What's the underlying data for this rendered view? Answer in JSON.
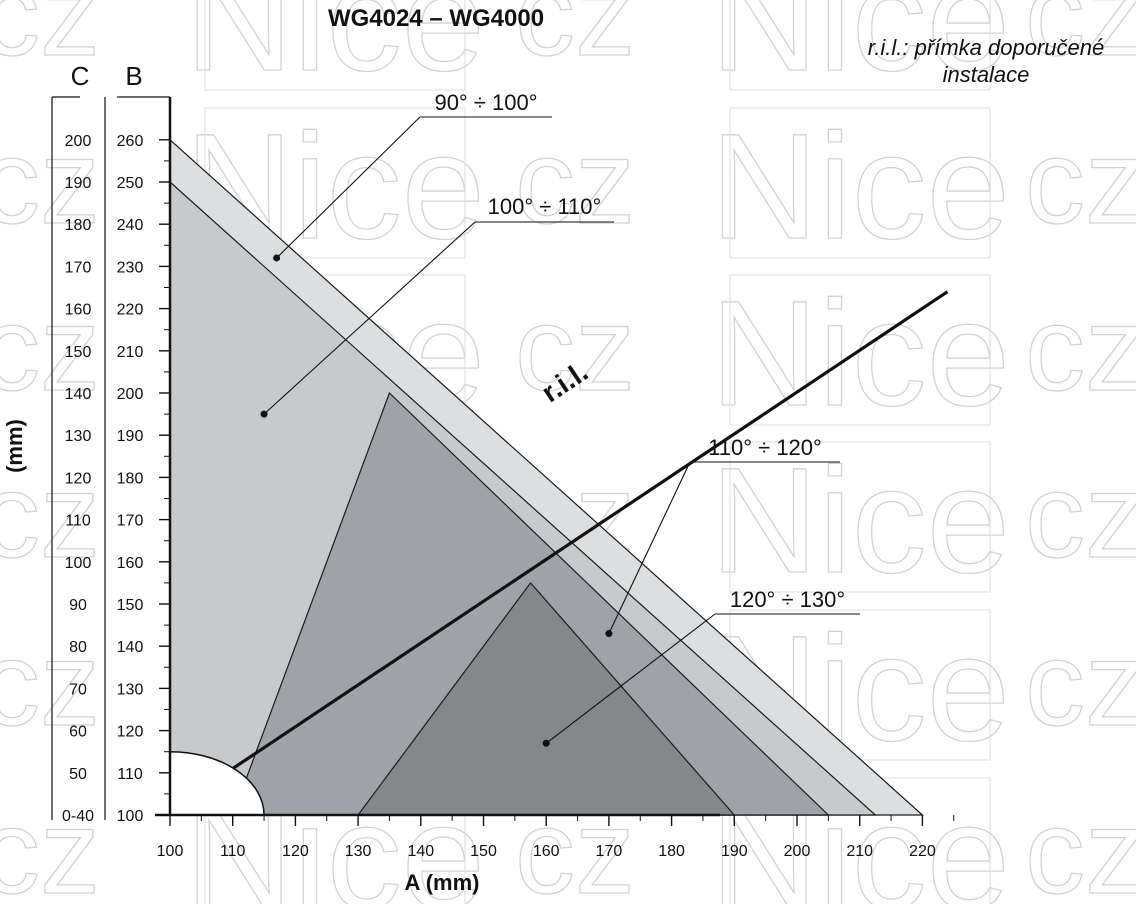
{
  "watermark": {
    "text": "Nice",
    "suffix": "cz"
  },
  "chart_data": {
    "type": "area",
    "title": "WG4024 – WG4000",
    "note": [
      "r.i.l.: přímka doporučené",
      "instalace"
    ],
    "x_axis": {
      "label": "A (mm)",
      "range": [
        100,
        225
      ],
      "ticks": [
        100,
        110,
        120,
        130,
        140,
        150,
        160,
        170,
        180,
        190,
        200,
        210,
        220
      ],
      "tick_labels": [
        "100",
        "110",
        "120",
        "130",
        "140",
        "150",
        "160",
        "170",
        "180",
        "190",
        "200",
        "210",
        "220"
      ]
    },
    "y_axis_B": {
      "letter": "B",
      "range": [
        100,
        270
      ],
      "ticks": [
        100,
        110,
        120,
        130,
        140,
        150,
        160,
        170,
        180,
        190,
        200,
        210,
        220,
        230,
        240,
        250,
        260
      ],
      "tick_labels": [
        "100",
        "110",
        "120",
        "130",
        "140",
        "150",
        "160",
        "170",
        "180",
        "190",
        "200",
        "210",
        "220",
        "230",
        "240",
        "250",
        "260"
      ]
    },
    "y_axis_C": {
      "letter": "C",
      "label": "(mm)",
      "tick_labels": [
        "0-40",
        "50",
        "60",
        "70",
        "80",
        "90",
        "100",
        "110",
        "120",
        "130",
        "140",
        "150",
        "160",
        "170",
        "180",
        "190",
        "200"
      ]
    },
    "regions": [
      {
        "name": "90° ÷ 100°",
        "fill": "#dcdedf",
        "polygon": [
          [
            100,
            260
          ],
          [
            220,
            100
          ],
          [
            100,
            100
          ]
        ],
        "callout_point": [
          117,
          232
        ]
      },
      {
        "name": "100° ÷ 110°",
        "fill": "#c7c9cb",
        "polygon": [
          [
            100,
            250
          ],
          [
            212.5,
            100
          ],
          [
            100,
            100
          ]
        ],
        "callout_point": [
          115,
          195
        ]
      },
      {
        "name": "110° ÷ 120°",
        "fill": "#9ea3a7",
        "polygon": [
          [
            135,
            200
          ],
          [
            205,
            100
          ],
          [
            110,
            100
          ]
        ],
        "callout_point": [
          170,
          143
        ]
      },
      {
        "name": "120° ÷ 130°",
        "fill": "#858789",
        "polygon": [
          [
            157.5,
            155
          ],
          [
            190,
            100
          ],
          [
            130,
            100
          ]
        ],
        "callout_point": [
          160,
          117
        ]
      }
    ],
    "ril_line": {
      "label": "r.i.l.",
      "points": [
        [
          110,
          111
        ],
        [
          224,
          224
        ]
      ]
    },
    "exclusion_zone": {
      "center": [
        100,
        100
      ],
      "radius": 15
    }
  }
}
